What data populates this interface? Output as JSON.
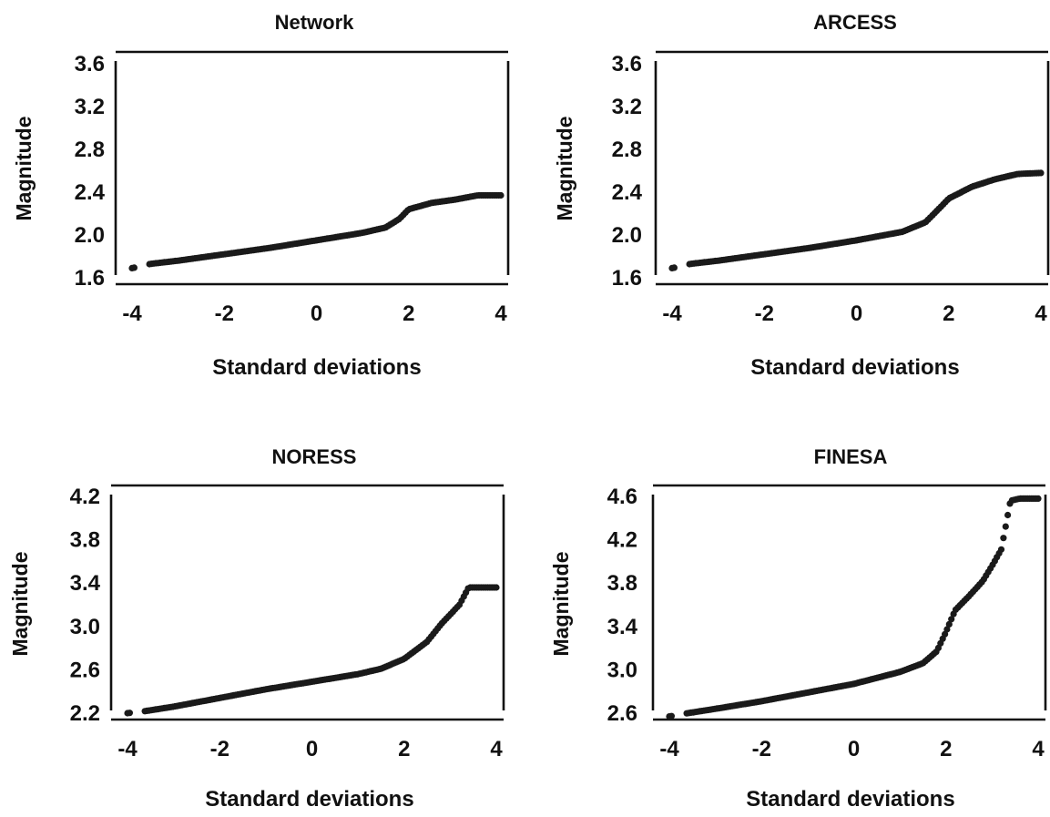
{
  "chart_data": [
    {
      "type": "scatter",
      "title": "Network",
      "xlabel": "Standard deviations",
      "ylabel": "Magnitude",
      "xlim": [
        -4,
        4
      ],
      "ylim": [
        1.6,
        3.6
      ],
      "xticks": [
        "-4",
        "-2",
        "0",
        "2",
        "4"
      ],
      "yticks": [
        "1.6",
        "2.0",
        "2.4",
        "2.8",
        "3.2",
        "3.6"
      ],
      "grid": false,
      "series": [
        {
          "x": [
            -4.0,
            -3.6,
            -3.0,
            -2.0,
            -1.0,
            0.0,
            1.0,
            1.5,
            1.8,
            2.0,
            2.5,
            3.0,
            3.5,
            4.0
          ],
          "values": [
            1.69,
            1.73,
            1.76,
            1.82,
            1.88,
            1.95,
            2.02,
            2.07,
            2.15,
            2.24,
            2.3,
            2.33,
            2.37,
            2.37
          ]
        }
      ]
    },
    {
      "type": "scatter",
      "title": "ARCESS",
      "xlabel": "Standard deviations",
      "ylabel": "Magnitude",
      "xlim": [
        -4,
        4
      ],
      "ylim": [
        1.6,
        3.6
      ],
      "xticks": [
        "-4",
        "-2",
        "0",
        "2",
        "4"
      ],
      "yticks": [
        "1.6",
        "2.0",
        "2.4",
        "2.8",
        "3.2",
        "3.6"
      ],
      "grid": false,
      "series": [
        {
          "x": [
            -4.0,
            -3.6,
            -3.0,
            -2.0,
            -1.0,
            0.0,
            1.0,
            1.5,
            1.8,
            2.0,
            2.5,
            3.0,
            3.5,
            4.0
          ],
          "values": [
            1.69,
            1.73,
            1.76,
            1.82,
            1.88,
            1.95,
            2.03,
            2.12,
            2.25,
            2.34,
            2.45,
            2.52,
            2.57,
            2.58
          ]
        }
      ]
    },
    {
      "type": "scatter",
      "title": "NORESS",
      "xlabel": "Standard deviations",
      "ylabel": "Magnitude",
      "xlim": [
        -4,
        4
      ],
      "ylim": [
        2.2,
        4.2
      ],
      "xticks": [
        "-4",
        "-2",
        "0",
        "2",
        "4"
      ],
      "yticks": [
        "2.2",
        "2.6",
        "3.0",
        "3.4",
        "3.8",
        "4.2"
      ],
      "grid": false,
      "series": [
        {
          "x": [
            -4.0,
            -3.6,
            -3.0,
            -2.0,
            -1.0,
            0.0,
            1.0,
            1.5,
            2.0,
            2.5,
            2.8,
            3.0,
            3.2,
            3.4,
            3.6,
            4.0
          ],
          "values": [
            2.2,
            2.22,
            2.26,
            2.34,
            2.42,
            2.49,
            2.56,
            2.61,
            2.7,
            2.86,
            3.02,
            3.11,
            3.2,
            3.36,
            3.36,
            3.36
          ]
        }
      ]
    },
    {
      "type": "scatter",
      "title": "FINESA",
      "xlabel": "Standard deviations",
      "ylabel": "Magnitude",
      "xlim": [
        -4,
        4
      ],
      "ylim": [
        2.6,
        4.6
      ],
      "xticks": [
        "-4",
        "-2",
        "0",
        "2",
        "4"
      ],
      "yticks": [
        "2.6",
        "3.0",
        "3.4",
        "3.8",
        "4.2",
        "4.6"
      ],
      "grid": false,
      "series": [
        {
          "x": [
            -4.0,
            -3.6,
            -3.0,
            -2.0,
            -1.0,
            0.0,
            1.0,
            1.5,
            1.8,
            2.0,
            2.2,
            2.5,
            2.8,
            3.0,
            3.2,
            3.4,
            3.6,
            4.0
          ],
          "values": [
            2.57,
            2.6,
            2.64,
            2.71,
            2.79,
            2.87,
            2.98,
            3.06,
            3.17,
            3.35,
            3.55,
            3.68,
            3.82,
            3.96,
            4.11,
            4.56,
            4.58,
            4.58
          ]
        }
      ]
    }
  ]
}
